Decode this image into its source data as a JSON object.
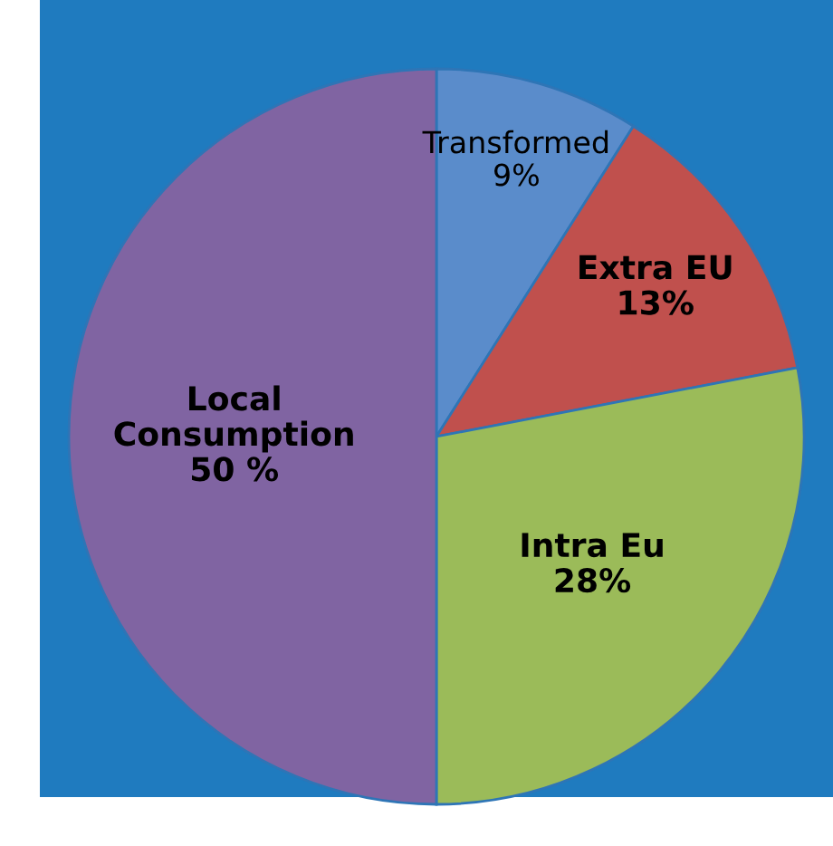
{
  "chart_data": {
    "type": "pie",
    "categories": [
      "Transformed",
      "Extra EU",
      "Intra Eu",
      "Local Consumption"
    ],
    "values": [
      9,
      13,
      28,
      50
    ],
    "value_labels": [
      "9%",
      "13%",
      "28%",
      "50 %"
    ],
    "colors": [
      "#5a8ccb",
      "#c0504d",
      "#9bbb59",
      "#8064a2"
    ],
    "legend": false
  }
}
